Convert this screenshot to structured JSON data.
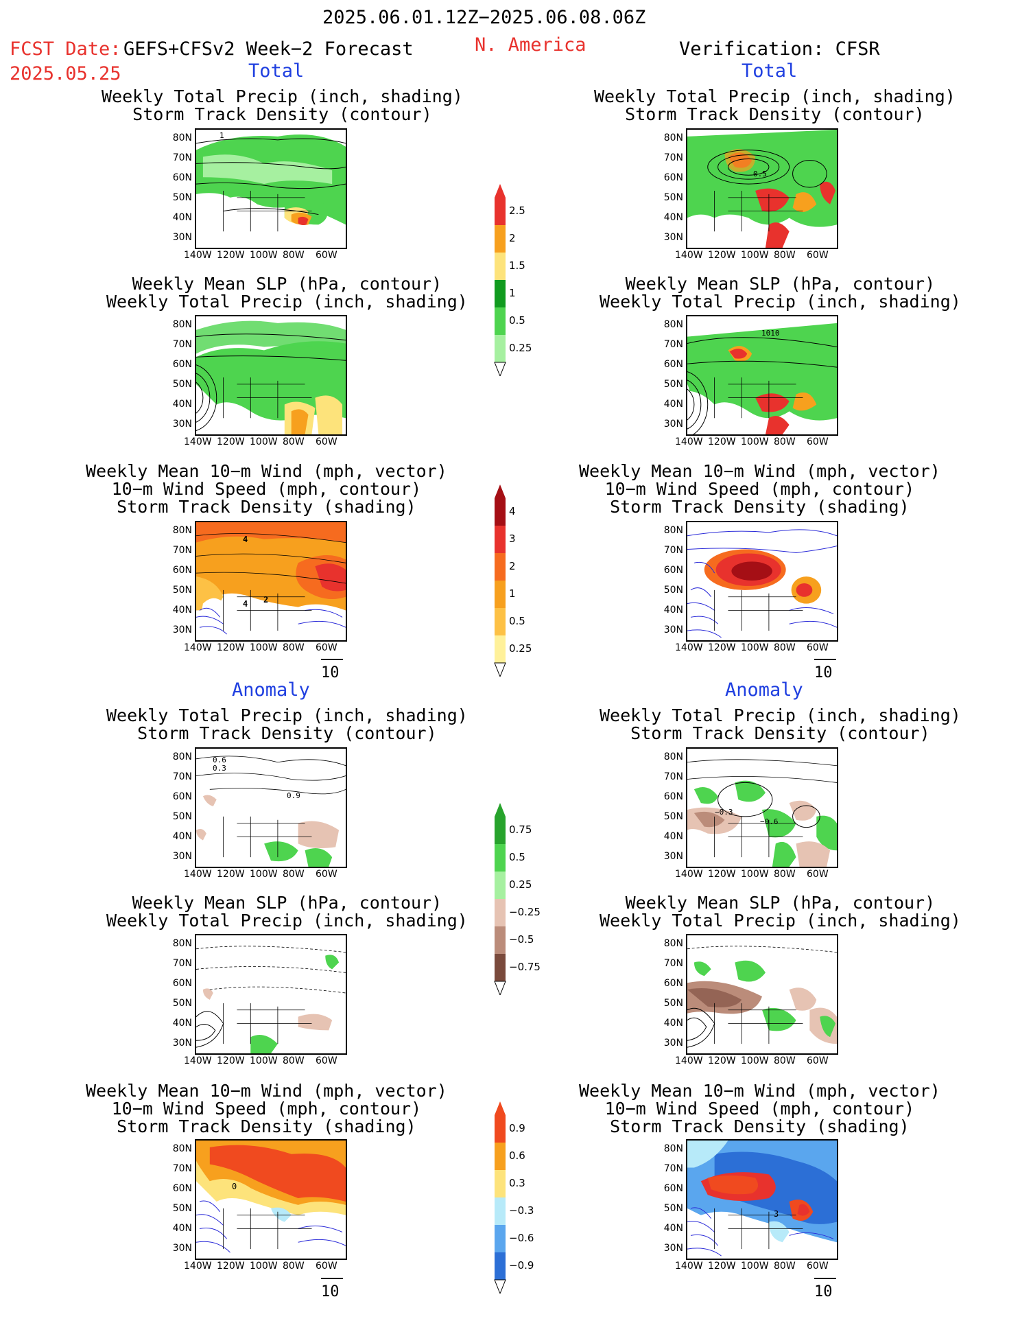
{
  "header": {
    "date_range": "2025.06.01.12Z−2025.06.08.06Z",
    "fcst_date_label": "FCST Date:",
    "fcst_date_value": "2025.05.25",
    "model": "GEFS+CFSv2 Week−2 Forecast",
    "region": "N. America",
    "verification": "Verification: CFSR"
  },
  "sections": {
    "total_left": "Total",
    "total_right": "Total",
    "anomaly_left": "Anomaly",
    "anomaly_right": "Anomaly"
  },
  "titles": {
    "precip_storm": [
      "Weekly Total Precip (inch, shading)",
      "Storm Track Density (contour)"
    ],
    "slp_precip": [
      "Weekly Mean SLP (hPa, contour)",
      "Weekly Total Precip (inch, shading)"
    ],
    "wind_storm": [
      "Weekly Mean 10−m Wind (mph, vector)",
      "10−m Wind Speed (mph, contour)",
      "Storm Track Density (shading)"
    ]
  },
  "axes": {
    "lat_labels": [
      "80N",
      "70N",
      "60N",
      "50N",
      "40N",
      "30N"
    ],
    "lon_labels": [
      "140W",
      "120W",
      "100W",
      "80W",
      "60W"
    ]
  },
  "vector_ref": "10",
  "contour_labels": {
    "f_total_storm": "1",
    "v_total_storm": "0.5",
    "v_total_slp": "1010",
    "f_total_wind_a": "4",
    "f_total_wind_b": "4",
    "f_total_wind_c": "2",
    "f_anom_storm_a": "0.6",
    "f_anom_storm_b": "0.3",
    "f_anom_storm_c": "0.9",
    "v_anom_storm_a": "−0.3",
    "v_anom_storm_b": "−0.6",
    "f_anom_wind": "0",
    "v_anom_wind": "3"
  },
  "colorbars": {
    "precip_total": {
      "labels": [
        "2.5",
        "2",
        "1.5",
        "1",
        "0.5",
        "0.25"
      ],
      "colors": [
        "#e8322d",
        "#f7a01e",
        "#fde37b",
        "#119b1f",
        "#4ed44f",
        "#a6f0a0"
      ]
    },
    "storm_total": {
      "labels": [
        "4",
        "3",
        "2",
        "1",
        "0.5",
        "0.25"
      ],
      "colors": [
        "#a50f15",
        "#e8322d",
        "#f66b1f",
        "#f7a01e",
        "#fdc145",
        "#fff19a"
      ]
    },
    "precip_anom": {
      "labels": [
        "0.75",
        "0.5",
        "0.25",
        "−0.25",
        "−0.5",
        "−0.75"
      ],
      "colors": [
        "#27a32c",
        "#4ed44f",
        "#a6f0a0",
        "#e6c3b3",
        "#bb8c7a",
        "#7a4a3c"
      ]
    },
    "storm_anom": {
      "labels": [
        "0.9",
        "0.6",
        "0.3",
        "−0.3",
        "−0.6",
        "−0.9"
      ],
      "colors": [
        "#f04a1f",
        "#f7a01e",
        "#fde37b",
        "#b7eaf9",
        "#5aa6ee",
        "#2c6fd6"
      ]
    }
  },
  "colors": {
    "title_red": "#e8322d",
    "label_blue": "#1f3fe0"
  }
}
